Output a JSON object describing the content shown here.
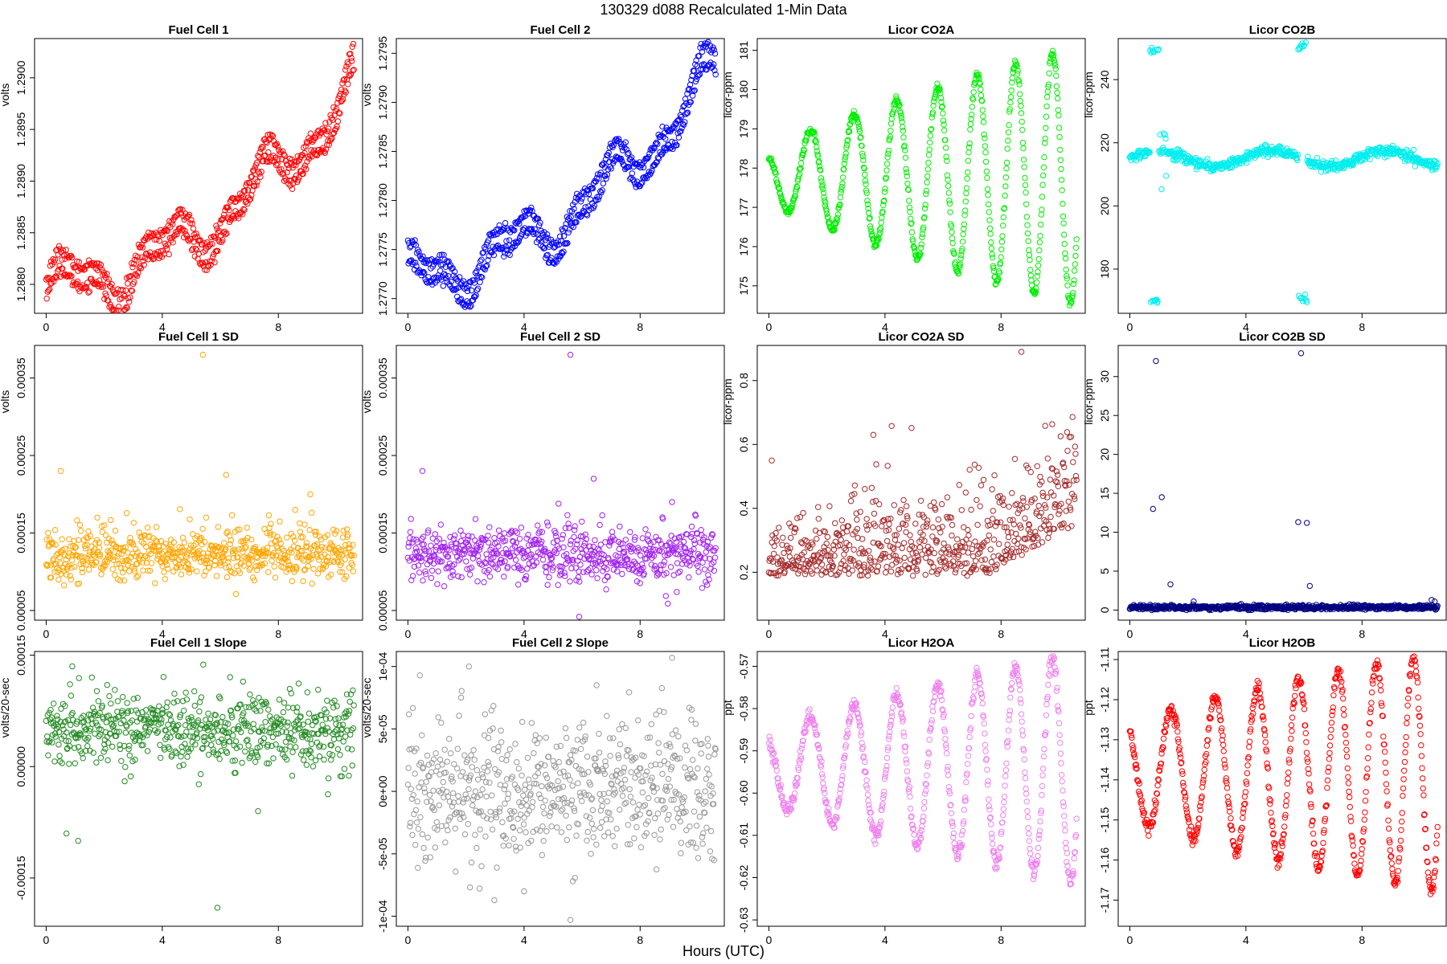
{
  "figure": {
    "title": "130329   d088   Recalculated 1-Min Data",
    "xlabel": "Hours (UTC)"
  },
  "chart_data": [
    {
      "id": "p0",
      "type": "scatter",
      "title": "Fuel Cell 1",
      "ylabel": "volts",
      "color": "#ff0000",
      "xlim": [
        -0.4,
        10.9
      ],
      "ylim": [
        1.28772,
        1.29038
      ],
      "xticks": [
        0,
        4,
        8
      ],
      "yticks": [
        1.288,
        1.2885,
        1.289,
        1.2895,
        1.29
      ],
      "ytick_labels": [
        "1.2880",
        "1.2885",
        "1.2890",
        "1.2895",
        "1.2900"
      ],
      "gen": {
        "kind": "drift2",
        "base": 1.28795,
        "trend": 0.00195,
        "amp": 0.00035,
        "band": 0.00018,
        "noise": 3e-05,
        "phase": 0
      }
    },
    {
      "id": "p1",
      "type": "scatter",
      "title": "Fuel Cell 2",
      "ylabel": "volts",
      "color": "#0000ff",
      "xlim": [
        -0.4,
        10.9
      ],
      "ylim": [
        1.27685,
        1.27965
      ],
      "xticks": [
        0,
        4,
        8
      ],
      "yticks": [
        1.277,
        1.2775,
        1.278,
        1.2785,
        1.279,
        1.2795
      ],
      "ytick_labels": [
        "1.2770",
        "1.2775",
        "1.2780",
        "1.2785",
        "1.2790",
        "1.2795"
      ],
      "gen": {
        "kind": "drift2",
        "base": 1.2772,
        "trend": 0.0021,
        "amp": 0.00035,
        "band": 0.00018,
        "noise": 3e-05,
        "phase": 1
      }
    },
    {
      "id": "p2",
      "type": "scatter",
      "title": "Licor CO2A",
      "ylabel": "licor-ppm",
      "color": "#00ee00",
      "xlim": [
        -0.4,
        10.9
      ],
      "ylim": [
        174.3,
        181.3
      ],
      "xticks": [
        0,
        4,
        8
      ],
      "yticks": [
        175,
        176,
        177,
        178,
        179,
        180,
        181
      ],
      "ytick_labels": [
        "175",
        "176",
        "177",
        "178",
        "179",
        "180",
        "181"
      ],
      "gen": {
        "kind": "wave",
        "mid": 177.8,
        "amp_start": 0.6,
        "amp_end": 3.3,
        "period_start": 1.6,
        "period_end": 1.4,
        "noise": 0.05,
        "sign": 1
      }
    },
    {
      "id": "p3",
      "type": "scatter",
      "title": "Licor CO2B",
      "ylabel": "licor-ppm",
      "color": "#00eeee",
      "xlim": [
        -0.4,
        10.9
      ],
      "ylim": [
        166,
        253
      ],
      "xticks": [
        0,
        4,
        8
      ],
      "yticks": [
        180,
        200,
        220,
        240
      ],
      "ytick_labels": [
        "180",
        "200",
        "220",
        "240"
      ],
      "gen": {
        "kind": "co2b",
        "mid": 215,
        "amp": 2.5,
        "noise": 0.8
      }
    },
    {
      "id": "p4",
      "type": "scatter",
      "title": "Fuel Cell 1 SD",
      "ylabel": "volts",
      "color": "#ffa500",
      "xlim": [
        -0.4,
        10.9
      ],
      "ylim": [
        3.75e-05,
        0.000392
      ],
      "xticks": [
        0,
        4,
        8
      ],
      "yticks": [
        5e-05,
        0.00015,
        0.00025,
        0.00035
      ],
      "ytick_labels": [
        "0.00005",
        "0.00015",
        "0.00025",
        "0.00035"
      ],
      "gen": {
        "kind": "noise",
        "mean": 0.000123,
        "sd": 1.8e-05,
        "lo": 4e-05,
        "hi": 0.00039,
        "out": [
          [
            0.5,
            0.00023
          ],
          [
            5.4,
            0.00038
          ],
          [
            6.2,
            0.000225
          ],
          [
            9.1,
            0.0002
          ],
          [
            5.9,
            4e-05
          ]
        ]
      }
    },
    {
      "id": "p5",
      "type": "scatter",
      "title": "Fuel Cell 2 SD",
      "ylabel": "volts",
      "color": "#a020f0",
      "xlim": [
        -0.4,
        10.9
      ],
      "ylim": [
        3.75e-05,
        0.000392
      ],
      "xticks": [
        0,
        4,
        8
      ],
      "yticks": [
        5e-05,
        0.00015,
        0.00025,
        0.00035
      ],
      "ytick_labels": [
        "0.00005",
        "0.00015",
        "0.00025",
        "0.00035"
      ],
      "gen": {
        "kind": "noise",
        "mean": 0.000123,
        "sd": 1.8e-05,
        "lo": 4e-05,
        "hi": 0.00039,
        "out": [
          [
            0.5,
            0.00023
          ],
          [
            5.6,
            0.00038
          ],
          [
            6.4,
            0.00022
          ],
          [
            9.1,
            0.00019
          ],
          [
            5.9,
            4.2e-05
          ]
        ]
      }
    },
    {
      "id": "p6",
      "type": "scatter",
      "title": "Licor CO2A SD",
      "ylabel": "licor-ppm",
      "color": "#a52a2a",
      "xlim": [
        -0.4,
        10.9
      ],
      "ylim": [
        0.05,
        0.91
      ],
      "xticks": [
        0,
        4,
        8
      ],
      "yticks": [
        0.2,
        0.4,
        0.6,
        0.8
      ],
      "ytick_labels": [
        "0.2",
        "0.4",
        "0.6",
        "0.8"
      ],
      "gen": {
        "kind": "noise_grow",
        "mean": 0.22,
        "grow": 0.18,
        "sd": 0.08,
        "lo": 0.06,
        "hi": 0.9,
        "out": [
          [
            8.7,
            0.89
          ],
          [
            3.6,
            0.63
          ],
          [
            0.1,
            0.55
          ]
        ]
      }
    },
    {
      "id": "p7",
      "type": "scatter",
      "title": "Licor CO2B SD",
      "ylabel": "licor-ppm",
      "color": "#000080",
      "xlim": [
        -0.4,
        10.9
      ],
      "ylim": [
        -1.3,
        34
      ],
      "xticks": [
        0,
        4,
        8
      ],
      "yticks": [
        0,
        5,
        10,
        15,
        20,
        25,
        30
      ],
      "ytick_labels": [
        "0",
        "5",
        "10",
        "15",
        "20",
        "25",
        "30"
      ],
      "gen": {
        "kind": "noise",
        "mean": 0.35,
        "sd": 0.15,
        "lo": 0.0,
        "hi": 34,
        "out": [
          [
            0.8,
            13
          ],
          [
            0.9,
            32
          ],
          [
            1.1,
            14.5
          ],
          [
            1.4,
            3.3
          ],
          [
            5.8,
            11.3
          ],
          [
            5.9,
            33
          ],
          [
            6.1,
            11.2
          ],
          [
            6.2,
            3.1
          ],
          [
            2.2,
            1.1
          ],
          [
            10.4,
            1.3
          ],
          [
            10.5,
            1.1
          ]
        ]
      }
    },
    {
      "id": "p8",
      "type": "scatter",
      "title": "Fuel Cell 1 Slope",
      "ylabel": "volts/20-sec",
      "color": "#228b22",
      "xlim": [
        -0.4,
        10.9
      ],
      "ylim": [
        -0.000215,
        0.000155
      ],
      "xticks": [
        0,
        4,
        8
      ],
      "yticks": [
        -0.00015,
        0,
        0.00015
      ],
      "ytick_labels": [
        "-0.00015",
        "0.00000",
        "0.00015"
      ],
      "gen": {
        "kind": "noise",
        "mean": 5e-05,
        "sd": 2.5e-05,
        "lo": -0.0002,
        "hi": 0.00015,
        "out": [
          [
            0.9,
            0.000135
          ],
          [
            2.1,
            0.00011
          ],
          [
            9.0,
            0.0001
          ],
          [
            0.7,
            -9e-05
          ],
          [
            1.1,
            -0.0001
          ],
          [
            5.9,
            -0.00019
          ],
          [
            7.3,
            -6e-05
          ]
        ]
      }
    },
    {
      "id": "p9",
      "type": "scatter",
      "title": "Fuel Cell 2 Slope",
      "ylabel": "volts/20-sec",
      "color": "#999999",
      "xlim": [
        -0.4,
        10.9
      ],
      "ylim": [
        -0.000108,
        0.000112
      ],
      "xticks": [
        0,
        4,
        8
      ],
      "yticks": [
        -0.0001,
        -5e-05,
        0,
        5e-05,
        0.0001
      ],
      "ytick_labels": [
        "-1e-04",
        "-5e-05",
        "0e+00",
        "5e-05",
        "1e-04"
      ],
      "gen": {
        "kind": "noise",
        "mean": 0.0,
        "sd": 2.8e-05,
        "lo": -0.000105,
        "hi": 0.00011,
        "out": [
          [
            9.1,
            0.000107
          ],
          [
            2.1,
            0.0001
          ],
          [
            5.6,
            -0.000103
          ],
          [
            4.0,
            -8e-05
          ],
          [
            6.5,
            8.5e-05
          ]
        ]
      }
    },
    {
      "id": "p10",
      "type": "scatter",
      "title": "Licor H2OA",
      "ylabel": "ppt",
      "color": "#ee82ee",
      "xlim": [
        -0.4,
        10.9
      ],
      "ylim": [
        -0.6315,
        -0.5665
      ],
      "xticks": [
        0,
        4,
        8
      ],
      "yticks": [
        -0.63,
        -0.62,
        -0.61,
        -0.6,
        -0.59,
        -0.58,
        -0.57
      ],
      "ytick_labels": [
        "-0.63",
        "-0.62",
        "-0.61",
        "-0.60",
        "-0.59",
        "-0.58",
        "-0.57"
      ],
      "gen": {
        "kind": "wave",
        "mid": -0.594,
        "amp_start": 0.008,
        "amp_end": 0.027,
        "period_start": 1.6,
        "period_end": 1.4,
        "noise": 0.0008,
        "sign": 1
      }
    },
    {
      "id": "p11",
      "type": "scatter",
      "title": "Licor H2OB",
      "ylabel": "ppt",
      "color": "#ff0000",
      "xlim": [
        -0.4,
        10.9
      ],
      "ylim": [
        -1.1765,
        -1.108
      ],
      "xticks": [
        0,
        4,
        8
      ],
      "yticks": [
        -1.17,
        -1.16,
        -1.15,
        -1.14,
        -1.13,
        -1.12,
        -1.11
      ],
      "ytick_labels": [
        "-1.17",
        "-1.16",
        "-1.15",
        "-1.14",
        "-1.13",
        "-1.12",
        "-1.11"
      ],
      "gen": {
        "kind": "wave",
        "mid": -1.138,
        "amp_start": 0.012,
        "amp_end": 0.03,
        "period_start": 1.6,
        "period_end": 1.4,
        "noise": 0.0009,
        "sign": 1
      }
    }
  ]
}
